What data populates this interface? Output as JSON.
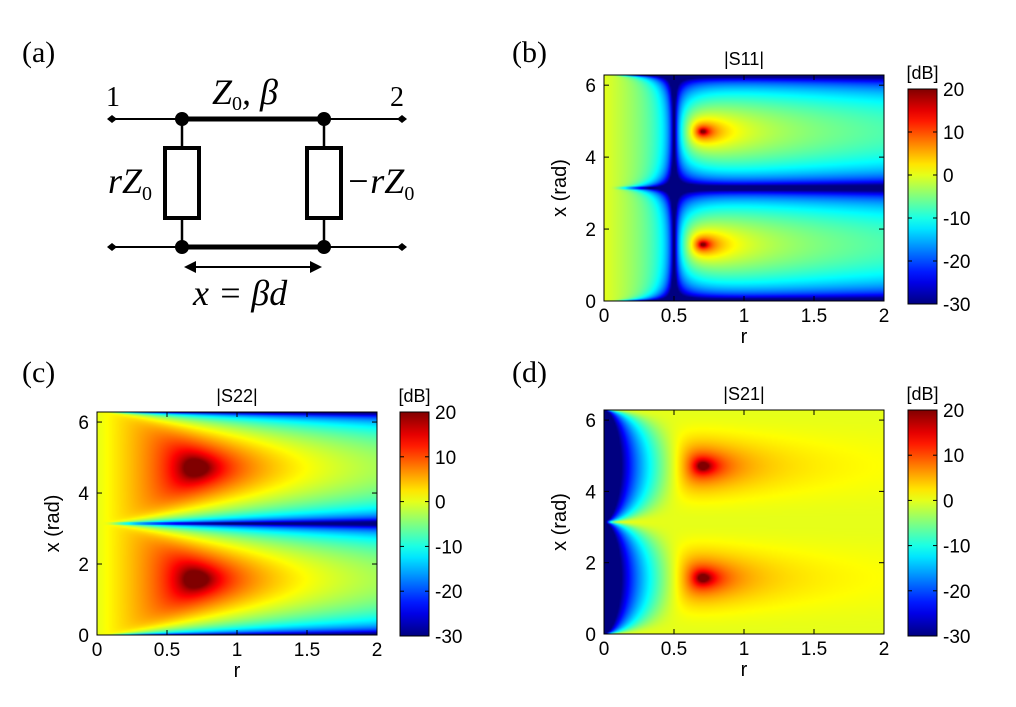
{
  "panels": {
    "a": {
      "tag": "(a)",
      "port1": "1",
      "port2": "2",
      "line_label": {
        "z": "Z",
        "sub": "0",
        "sep": ", ",
        "beta": "β"
      },
      "left_element": {
        "main": "rZ",
        "sub": "0"
      },
      "right_element": {
        "main": "−rZ",
        "sub": "0"
      },
      "length_label": "x = βd"
    },
    "b": {
      "tag": "(b)"
    },
    "c": {
      "tag": "(c)"
    },
    "d": {
      "tag": "(d)"
    }
  },
  "chart_data": [
    {
      "id": "b",
      "type": "heatmap",
      "title": "|S11|",
      "xlabel": "r",
      "ylabel": "x (rad)",
      "xlim": [
        0,
        2
      ],
      "ylim": [
        0,
        6.283
      ],
      "xticks": [
        "0",
        "0.5",
        "1",
        "1.5",
        "2"
      ],
      "xtick_values": [
        0,
        0.5,
        1,
        1.5,
        2
      ],
      "yticks": [
        "0",
        "2",
        "4",
        "6"
      ],
      "ytick_values": [
        0,
        2,
        4,
        6
      ],
      "colorbar": {
        "unit": "[dB]",
        "min": -30,
        "max": 20,
        "ticks": [
          "20",
          "10",
          "0",
          "-10",
          "-20",
          "-30"
        ],
        "tick_values": [
          20,
          10,
          0,
          -10,
          -20,
          -30
        ],
        "colormap": "jet"
      },
      "peaks": [
        {
          "r": 0.707,
          "x": 1.571,
          "dB": 20
        },
        {
          "r": 0.707,
          "x": 4.712,
          "dB": 20
        }
      ],
      "minimum_ridges": {
        "r": 0.5,
        "x": 3.1416,
        "dB": -30
      }
    },
    {
      "id": "c",
      "type": "heatmap",
      "title": "|S22|",
      "xlabel": "r",
      "ylabel": "x (rad)",
      "xlim": [
        0,
        2
      ],
      "ylim": [
        0,
        6.283
      ],
      "xticks": [
        "0",
        "0.5",
        "1",
        "1.5",
        "2"
      ],
      "xtick_values": [
        0,
        0.5,
        1,
        1.5,
        2
      ],
      "yticks": [
        "0",
        "2",
        "4",
        "6"
      ],
      "ytick_values": [
        0,
        2,
        4,
        6
      ],
      "colorbar": {
        "unit": "[dB]",
        "min": -30,
        "max": 20,
        "ticks": [
          "20",
          "10",
          "0",
          "-10",
          "-20",
          "-30"
        ],
        "tick_values": [
          20,
          10,
          0,
          -10,
          -20,
          -30
        ],
        "colormap": "jet"
      },
      "peaks": [
        {
          "r": 0.707,
          "x": 1.571,
          "dB": 18
        },
        {
          "r": 0.707,
          "x": 4.712,
          "dB": 18
        }
      ],
      "minimum_ridges": {
        "x": [
          0,
          3.1416,
          6.283
        ],
        "dB": -30
      }
    },
    {
      "id": "d",
      "type": "heatmap",
      "title": "|S21|",
      "xlabel": "r",
      "ylabel": "x (rad)",
      "xlim": [
        0,
        2
      ],
      "ylim": [
        0,
        6.283
      ],
      "xticks": [
        "0",
        "0.5",
        "1",
        "1.5",
        "2"
      ],
      "xtick_values": [
        0,
        0.5,
        1,
        1.5,
        2
      ],
      "yticks": [
        "0",
        "2",
        "4",
        "6"
      ],
      "ytick_values": [
        0,
        2,
        4,
        6
      ],
      "colorbar": {
        "unit": "[dB]",
        "min": -30,
        "max": 20,
        "ticks": [
          "20",
          "10",
          "0",
          "-10",
          "-20",
          "-30"
        ],
        "tick_values": [
          20,
          10,
          0,
          -10,
          -20,
          -30
        ],
        "colormap": "jet"
      },
      "peaks": [
        {
          "r": 0.707,
          "x": 1.571,
          "dB": 18
        },
        {
          "r": 0.707,
          "x": 4.712,
          "dB": 18
        }
      ],
      "minimum_ridges": {
        "r": 0,
        "dB": -30
      }
    }
  ]
}
